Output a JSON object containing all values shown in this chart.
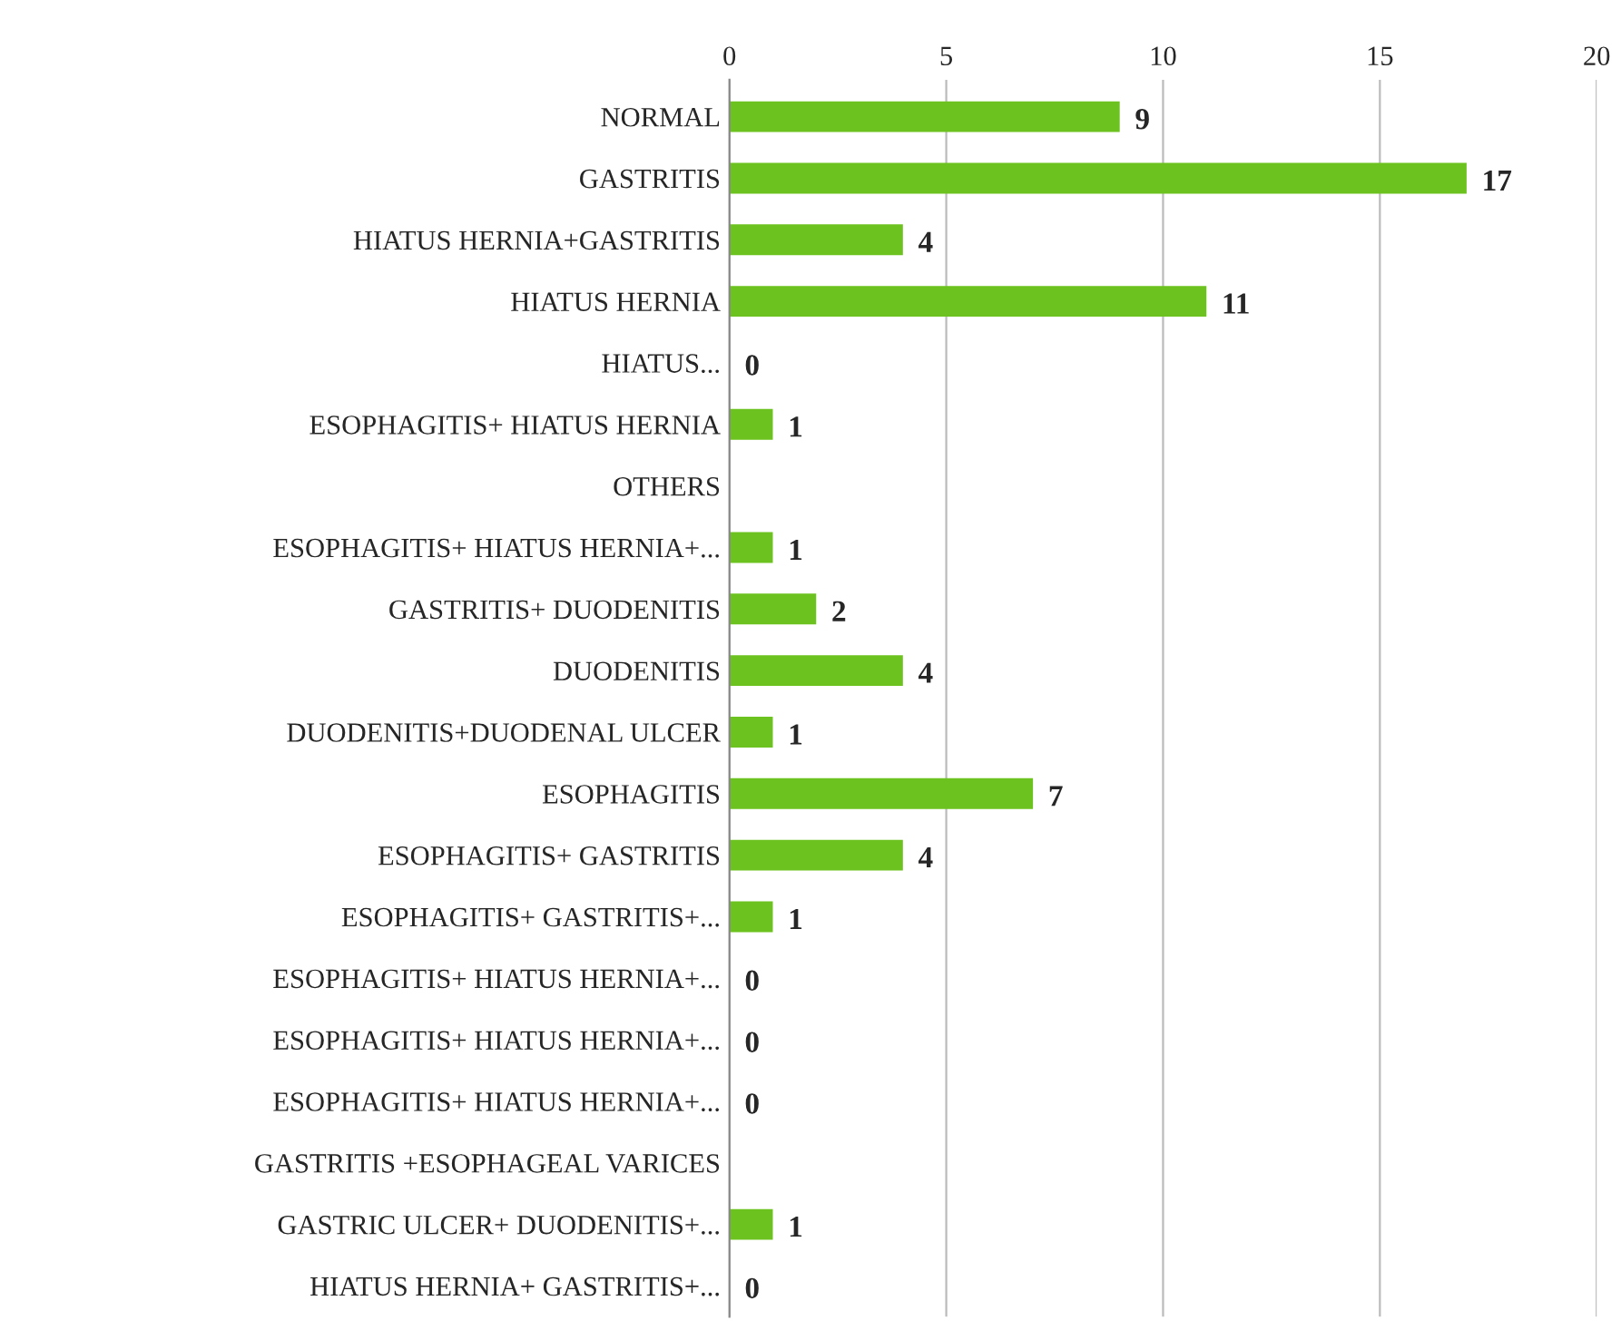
{
  "chart_data": {
    "type": "bar",
    "orientation": "horizontal",
    "categories": [
      "NORMAL",
      "GASTRITIS",
      "HIATUS HERNIA+GASTRITIS",
      "HIATUS HERNIA",
      "HIATUS...",
      "ESOPHAGITIS+ HIATUS HERNIA",
      "OTHERS",
      "ESOPHAGITIS+ HIATUS HERNIA+...",
      "GASTRITIS+ DUODENITIS",
      "DUODENITIS",
      "DUODENITIS+DUODENAL ULCER",
      "ESOPHAGITIS",
      "ESOPHAGITIS+ GASTRITIS",
      "ESOPHAGITIS+ GASTRITIS+...",
      "ESOPHAGITIS+ HIATUS HERNIA+...",
      "ESOPHAGITIS+ HIATUS HERNIA+...",
      "ESOPHAGITIS+ HIATUS HERNIA+...",
      "GASTRITIS +ESOPHAGEAL VARICES",
      "GASTRIC ULCER+ DUODENITIS+...",
      "HIATUS HERNIA+ GASTRITIS+..."
    ],
    "values": [
      9,
      17,
      4,
      11,
      0,
      1,
      null,
      1,
      2,
      4,
      1,
      7,
      4,
      1,
      0,
      0,
      0,
      null,
      1,
      0
    ],
    "value_labels": [
      "9",
      "17",
      "4",
      "11",
      "0",
      "1",
      null,
      "1",
      "2",
      "4",
      "1",
      "7",
      "4",
      "1",
      "0",
      "0",
      "0",
      null,
      "1",
      "0"
    ],
    "color": "#6cc21e",
    "xlim": [
      0,
      20
    ],
    "xticks": [
      0,
      5,
      10,
      15,
      20
    ],
    "grid": "x",
    "legend": false
  }
}
